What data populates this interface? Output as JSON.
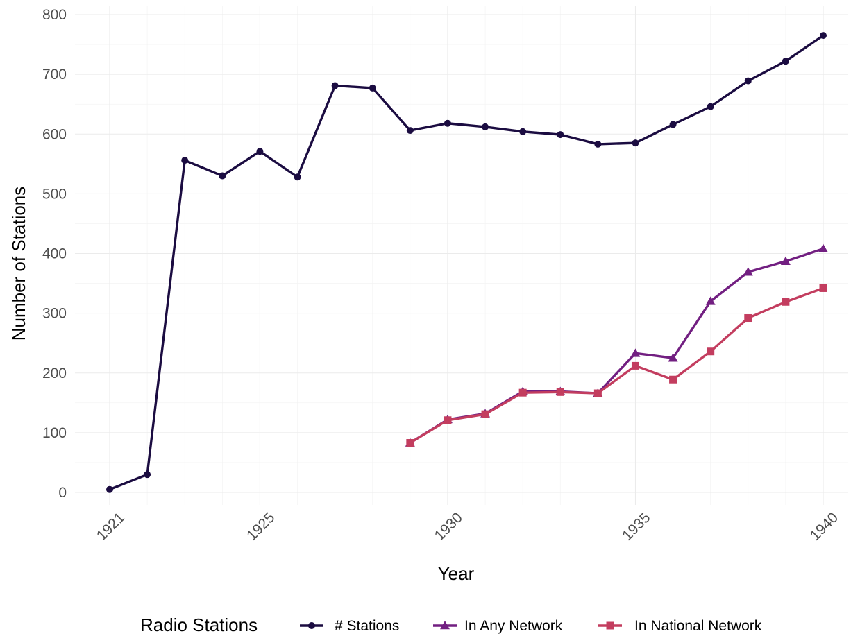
{
  "chart_data": {
    "type": "line",
    "xlabel": "Year",
    "ylabel": "Number of Stations",
    "ylim": [
      0,
      800
    ],
    "xlim": [
      1920.6,
      1940.4
    ],
    "grid": true,
    "x_ticks": [
      1921,
      1925,
      1930,
      1935,
      1940
    ],
    "y_ticks": [
      0,
      100,
      200,
      300,
      400,
      500,
      600,
      700,
      800
    ],
    "legend": {
      "title": "Radio Stations",
      "position": "bottom"
    },
    "series": [
      {
        "name": "# Stations",
        "color": "#1b0c41",
        "marker": "circle",
        "x": [
          1921,
          1922,
          1923,
          1924,
          1925,
          1926,
          1927,
          1928,
          1929,
          1930,
          1931,
          1932,
          1933,
          1934,
          1935,
          1936,
          1937,
          1938,
          1939,
          1940
        ],
        "values": [
          5,
          30,
          556,
          530,
          571,
          528,
          681,
          677,
          606,
          618,
          612,
          604,
          599,
          583,
          585,
          616,
          646,
          689,
          722,
          765
        ]
      },
      {
        "name": "In Any Network",
        "color": "#721f81",
        "marker": "triangle",
        "x": [
          1929,
          1930,
          1931,
          1932,
          1933,
          1934,
          1935,
          1936,
          1937,
          1938,
          1939,
          1940
        ],
        "values": [
          83,
          122,
          132,
          169,
          169,
          166,
          233,
          225,
          320,
          369,
          387,
          408
        ]
      },
      {
        "name": "In National Network",
        "color": "#c33d5f",
        "marker": "square",
        "x": [
          1929,
          1930,
          1931,
          1932,
          1933,
          1934,
          1935,
          1936,
          1937,
          1938,
          1939,
          1940
        ],
        "values": [
          83,
          121,
          131,
          167,
          168,
          166,
          212,
          189,
          236,
          292,
          319,
          342
        ]
      }
    ]
  }
}
